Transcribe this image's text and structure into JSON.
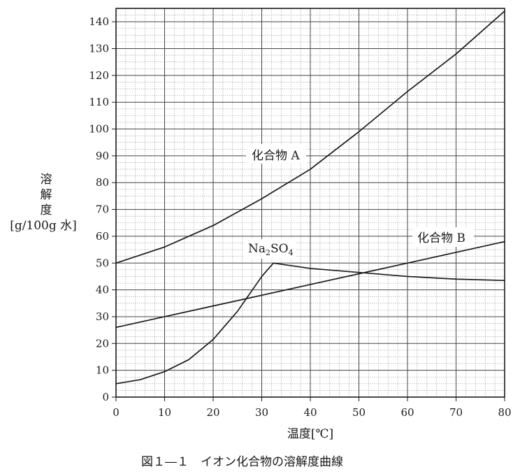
{
  "chart_data": {
    "type": "line",
    "title": "",
    "caption": "図１―１　イオン化合物の溶解度曲線",
    "xlabel": "温度[℃]",
    "ylabel_lines": [
      "溶",
      "解",
      "度",
      "[g/100g 水]"
    ],
    "xlim": [
      0,
      80
    ],
    "ylim": [
      0,
      145
    ],
    "x_ticks": [
      0,
      10,
      20,
      30,
      40,
      50,
      60,
      70,
      80
    ],
    "y_ticks": [
      0,
      10,
      20,
      30,
      40,
      50,
      60,
      70,
      80,
      90,
      100,
      110,
      120,
      130,
      140
    ],
    "grid": true,
    "series": [
      {
        "name": "化合物A",
        "label_text": "化合物 A",
        "points": [
          [
            0,
            50
          ],
          [
            10,
            56
          ],
          [
            20,
            64
          ],
          [
            30,
            74
          ],
          [
            40,
            85
          ],
          [
            50,
            99
          ],
          [
            60,
            114
          ],
          [
            70,
            128
          ],
          [
            80,
            144
          ]
        ]
      },
      {
        "name": "化合物B",
        "label_text": "化合物 B",
        "points": [
          [
            0,
            26
          ],
          [
            10,
            30
          ],
          [
            20,
            34
          ],
          [
            30,
            38
          ],
          [
            40,
            42
          ],
          [
            50,
            46
          ],
          [
            60,
            50
          ],
          [
            70,
            54
          ],
          [
            80,
            58
          ]
        ]
      },
      {
        "name": "Na2SO4",
        "label_main": "Na",
        "label_sub1": "2",
        "label_mid": "SO",
        "label_sub2": "4",
        "points": [
          [
            0,
            5
          ],
          [
            5,
            6.5
          ],
          [
            10,
            9.5
          ],
          [
            15,
            14
          ],
          [
            20,
            21.5
          ],
          [
            25,
            32
          ],
          [
            30,
            45
          ],
          [
            32.4,
            50
          ],
          [
            40,
            48
          ],
          [
            50,
            46.5
          ],
          [
            60,
            45
          ],
          [
            70,
            44
          ],
          [
            80,
            43.5
          ]
        ]
      }
    ]
  }
}
